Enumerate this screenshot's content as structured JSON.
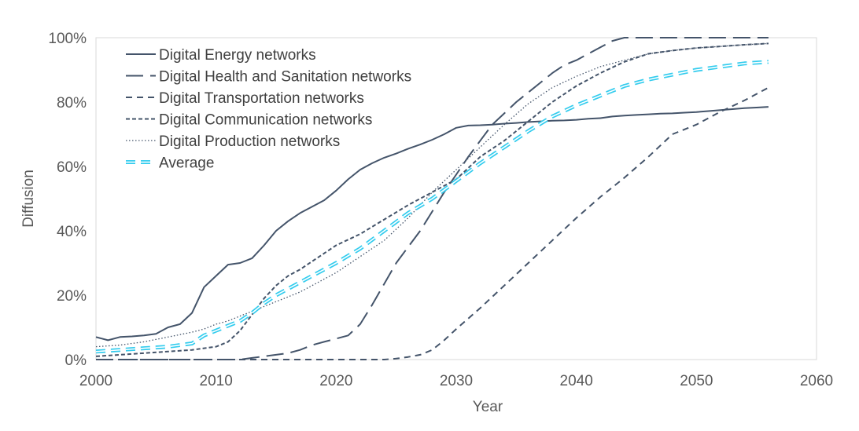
{
  "chart_data": {
    "type": "line",
    "title": "",
    "xlabel": "Year",
    "ylabel": "Diffusion",
    "xlim": [
      2000,
      2060
    ],
    "ylim": [
      0,
      100
    ],
    "x_ticks": [
      "2000",
      "2010",
      "2020",
      "2030",
      "2040",
      "2050",
      "2060"
    ],
    "y_ticks": [
      "0%",
      "20%",
      "40%",
      "60%",
      "80%",
      "100%"
    ],
    "grid": false,
    "legend_position": "top-left",
    "series": [
      {
        "name": "Digital Energy networks",
        "color": "#44546a",
        "dash": "solid",
        "x": [
          2000,
          2001,
          2002,
          2003,
          2004,
          2005,
          2006,
          2007,
          2008,
          2009,
          2010,
          2011,
          2012,
          2013,
          2014,
          2015,
          2016,
          2017,
          2018,
          2019,
          2020,
          2021,
          2022,
          2023,
          2024,
          2025,
          2026,
          2027,
          2028,
          2029,
          2030,
          2031,
          2032,
          2033,
          2034,
          2035,
          2036,
          2037,
          2038,
          2039,
          2040,
          2041,
          2042,
          2043,
          2044,
          2045,
          2046,
          2047,
          2048,
          2049,
          2050,
          2051,
          2052,
          2053,
          2054,
          2055,
          2056
        ],
        "values": [
          7,
          6,
          7,
          7.2,
          7.5,
          8,
          10,
          11,
          14.5,
          22.5,
          26,
          29.5,
          30,
          31.5,
          35.5,
          40,
          43,
          45.5,
          47.5,
          49.5,
          52.5,
          56,
          59,
          61,
          62.7,
          64,
          65.5,
          66.8,
          68.3,
          70,
          72,
          72.7,
          72.8,
          73,
          73.3,
          73.5,
          73.8,
          74,
          74.2,
          74.3,
          74.5,
          74.8,
          75,
          75.5,
          75.8,
          76,
          76.2,
          76.4,
          76.5,
          76.7,
          76.9,
          77.2,
          77.5,
          77.8,
          78.1,
          78.3,
          78.5
        ]
      },
      {
        "name": "Digital Health and Sanitation networks",
        "color": "#44546a",
        "dash": "long-dash",
        "x": [
          2000,
          2005,
          2010,
          2012,
          2013,
          2014,
          2015,
          2016,
          2017,
          2018,
          2019,
          2020,
          2021,
          2022,
          2023,
          2024,
          2025,
          2026,
          2027,
          2028,
          2029,
          2030,
          2031,
          2032,
          2033,
          2034,
          2035,
          2036,
          2037,
          2038,
          2039,
          2040,
          2041,
          2042,
          2043,
          2044,
          2050,
          2056
        ],
        "values": [
          0,
          0,
          0,
          0,
          0.5,
          1,
          1.5,
          2,
          3,
          4.5,
          5.5,
          6.5,
          7.5,
          11,
          17,
          23.5,
          30,
          35,
          40,
          46,
          52,
          57.5,
          63,
          68,
          73,
          76.5,
          80,
          83,
          86,
          89,
          91.5,
          93,
          95,
          97,
          99,
          100,
          100,
          100
        ]
      },
      {
        "name": "Digital Transportation networks",
        "color": "#44546a",
        "dash": "short-dash",
        "x": [
          2000,
          2010,
          2020,
          2024,
          2025,
          2026,
          2027,
          2028,
          2029,
          2030,
          2032,
          2034,
          2036,
          2038,
          2040,
          2042,
          2044,
          2046,
          2048,
          2050,
          2052,
          2054,
          2056
        ],
        "values": [
          0,
          0,
          0,
          0,
          0.3,
          0.8,
          1.5,
          3,
          6,
          9.5,
          16,
          23,
          30,
          37,
          44,
          50.5,
          56.5,
          63,
          70,
          73,
          77,
          80.5,
          84.5
        ]
      },
      {
        "name": "Digital Communication networks",
        "color": "#44546a",
        "dash": "dot-dash",
        "x": [
          2000,
          2002,
          2004,
          2006,
          2008,
          2009,
          2010,
          2011,
          2012,
          2013,
          2014,
          2015,
          2016,
          2017,
          2018,
          2019,
          2020,
          2022,
          2024,
          2026,
          2028,
          2030,
          2032,
          2034,
          2036,
          2038,
          2040,
          2042,
          2044,
          2046,
          2048,
          2050,
          2052,
          2054,
          2056
        ],
        "values": [
          1,
          1.5,
          2,
          2.5,
          3,
          3.5,
          4,
          5.5,
          9,
          14,
          19,
          23,
          26,
          28,
          30.5,
          33,
          35.5,
          39,
          43.5,
          48,
          52,
          56,
          63,
          68,
          74,
          80,
          85,
          89,
          92.5,
          95,
          96,
          96.8,
          97.3,
          97.8,
          98.2
        ]
      },
      {
        "name": "Digital Production networks",
        "color": "#44546a",
        "dash": "dotted",
        "x": [
          2000,
          2002,
          2004,
          2006,
          2008,
          2009,
          2010,
          2011,
          2012,
          2013,
          2014,
          2015,
          2016,
          2017,
          2018,
          2019,
          2020,
          2022,
          2024,
          2026,
          2028,
          2030,
          2032,
          2034,
          2036,
          2038,
          2040,
          2042,
          2044,
          2046,
          2048,
          2050,
          2052,
          2054,
          2056
        ],
        "values": [
          4,
          4.5,
          5.5,
          7,
          8.5,
          9.5,
          11,
          12,
          13.5,
          15,
          16.5,
          18,
          19.5,
          21,
          23,
          25,
          27,
          32,
          37,
          44,
          52,
          59,
          66,
          73,
          79.5,
          84.5,
          88,
          91,
          93,
          95,
          96,
          96.8,
          97.3,
          97.8,
          98.2
        ]
      },
      {
        "name": "Average",
        "color": "#33ccee",
        "dash": "double-dash",
        "x": [
          2000,
          2002,
          2004,
          2006,
          2008,
          2009,
          2010,
          2011,
          2012,
          2013,
          2014,
          2015,
          2016,
          2017,
          2018,
          2019,
          2020,
          2022,
          2024,
          2026,
          2028,
          2030,
          2032,
          2034,
          2036,
          2038,
          2040,
          2042,
          2044,
          2046,
          2048,
          2050,
          2052,
          2054,
          2056
        ],
        "values": [
          2.5,
          3,
          3.5,
          4,
          5,
          7.5,
          9,
          10.5,
          12,
          14.5,
          17.5,
          20,
          22,
          24,
          26,
          28,
          30,
          34.5,
          40,
          45.5,
          50,
          55.5,
          61,
          66,
          71,
          75.5,
          79,
          82,
          85,
          87,
          88.5,
          90,
          91,
          92,
          92.5
        ]
      }
    ]
  }
}
